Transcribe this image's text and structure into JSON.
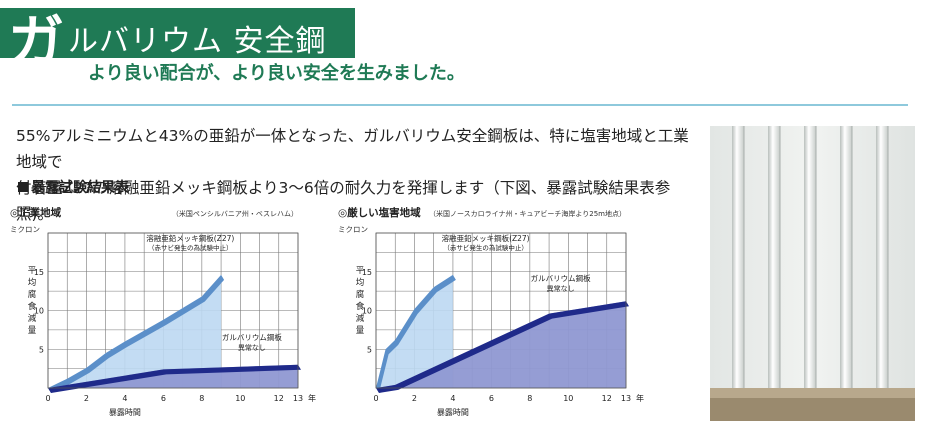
{
  "header": {
    "ka": "ガ",
    "title": "ルバリウム 安全鋼板",
    "subtitle": "より良い配合が、より良い安全を生みました。",
    "brand_color": "#1f7a55",
    "rule_color": "#8ec9dc"
  },
  "body": {
    "line1": "55%アルミニウムと43%の亜鉛が一体となった、ガルバリウム安全鋼板は、特に塩害地域と工業地域で",
    "line2": "付着量Z27の溶融亜鉛メッキ鋼板より3〜6倍の耐久力を発揮します（下図、暴露試験結果表参照)。"
  },
  "section": {
    "title": "暴露試験結果表"
  },
  "chart_data": [
    {
      "type": "area",
      "title": "◎工業地域",
      "subtitle": "（米国ペンシルバニア州・ベスレハム）",
      "ylabel": "平均腐食減量",
      "yunit": "ミクロン",
      "xlabel": "暴露時間",
      "xunit": "年",
      "xlim": [
        0,
        13
      ],
      "ylim": [
        0,
        20
      ],
      "xticks": [
        0,
        2,
        4,
        6,
        8,
        10,
        12,
        13
      ],
      "yticks": [
        5,
        10,
        15
      ],
      "series": [
        {
          "name": "溶融亜鉛メッキ鋼板(Z27)",
          "note": "（赤サビ発生の為試験中止）",
          "color": "#bcd8f2",
          "x": [
            0,
            1,
            2,
            3,
            4,
            6,
            8,
            9
          ],
          "y": [
            0,
            1.2,
            2.6,
            4.5,
            6.0,
            8.8,
            11.8,
            14.6
          ]
        },
        {
          "name": "ガルバリウム鋼板",
          "note": "異常なし",
          "color": "#8f98d2",
          "x": [
            0,
            1,
            6,
            13
          ],
          "y": [
            0,
            0.4,
            2.4,
            3.0
          ]
        }
      ]
    },
    {
      "type": "area",
      "title": "◎厳しい塩害地域",
      "subtitle": "（米国ノースカロライナ州・キュアビーチ海岸より25m地点）",
      "ylabel": "平均腐食減量",
      "yunit": "ミクロン",
      "xlabel": "暴露時間",
      "xunit": "年",
      "xlim": [
        0,
        13
      ],
      "ylim": [
        0,
        20
      ],
      "xticks": [
        0,
        2,
        4,
        6,
        8,
        10,
        12,
        13
      ],
      "yticks": [
        5,
        10,
        15
      ],
      "series": [
        {
          "name": "溶融亜鉛メッキ鋼板(Z27)",
          "note": "（赤サビ発生の為試験中止）",
          "color": "#bcd8f2",
          "x": [
            0,
            0.5,
            1,
            2,
            3,
            4
          ],
          "y": [
            0,
            5,
            6.2,
            10.2,
            13.0,
            14.6
          ]
        },
        {
          "name": "ガルバリウム鋼板",
          "note": "異常なし",
          "color": "#8f98d2",
          "x": [
            0,
            1,
            9,
            13
          ],
          "y": [
            0,
            0.4,
            9.6,
            11.2
          ]
        }
      ]
    }
  ]
}
